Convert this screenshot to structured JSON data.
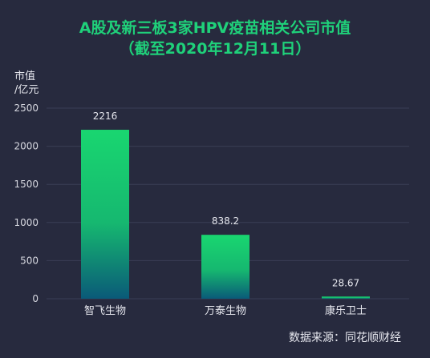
{
  "chart_data": {
    "type": "bar",
    "title": "A股及新三板3家HPV疫苗相关公司市值",
    "subtitle": "（截至2020年12月11日）",
    "ylabel_line1": "市值",
    "ylabel_line2": "/亿元",
    "categories": [
      "智飞生物",
      "万泰生物",
      "康乐卫士"
    ],
    "values": [
      2216,
      838.2,
      28.67
    ],
    "value_labels": [
      "2216",
      "838.2",
      "28.67"
    ],
    "ylim": [
      0,
      2500
    ],
    "yticks": [
      0,
      500,
      1000,
      1500,
      2000,
      2500
    ],
    "grid": true,
    "source": "数据来源：同花顺财经",
    "colors": {
      "bar_top": "#19d670",
      "bar_bottom": "#0a5a78",
      "grid": "#3a3e55",
      "title": "#1fd17a"
    }
  }
}
